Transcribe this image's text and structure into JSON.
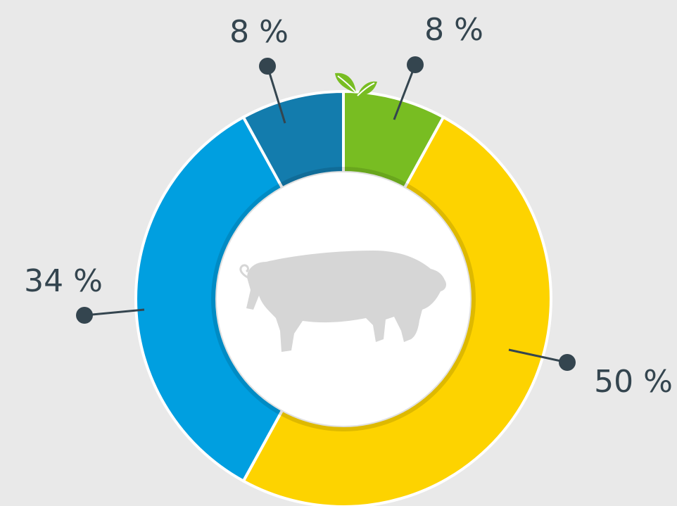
{
  "chart_data": {
    "type": "pie",
    "series": [
      {
        "values": [
          8,
          50,
          34,
          8
        ],
        "value_labels": [
          "8 %",
          "50 %",
          "34 %",
          "8 %"
        ],
        "colors": [
          "#78bd22",
          "#fdd300",
          "#009fe0",
          "#137cad"
        ]
      }
    ]
  }
}
